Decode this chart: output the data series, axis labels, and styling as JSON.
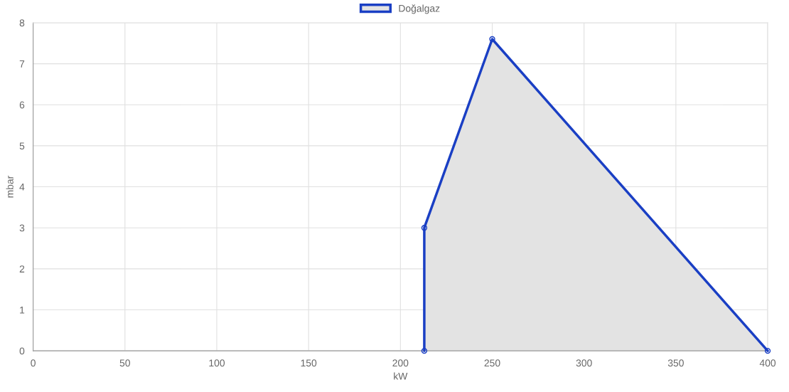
{
  "chart_data": {
    "type": "area",
    "xlabel": "kW",
    "ylabel": "mbar",
    "series": [
      {
        "name": "Doğalgaz",
        "color": "#1a3fc4",
        "x": [
          213,
          213,
          250,
          400
        ],
        "values": [
          0,
          3,
          7.6,
          0
        ]
      }
    ],
    "xlim": [
      0,
      400
    ],
    "xticks": [
      0,
      50,
      100,
      150,
      200,
      250,
      300,
      350,
      400
    ],
    "ylim": [
      0,
      8
    ],
    "yticks": [
      0,
      1,
      2,
      3,
      4,
      5,
      6,
      7,
      8
    ],
    "grid": true,
    "legend": "top",
    "marker": "circle",
    "line_style": "solid"
  }
}
